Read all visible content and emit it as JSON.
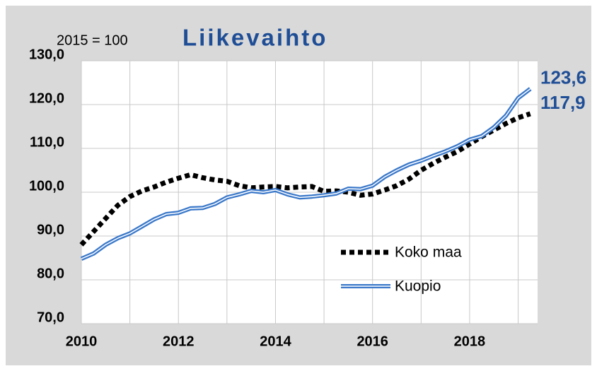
{
  "chart_data": {
    "type": "line",
    "title": "Liikevaihto",
    "subtitle": "2015 = 100",
    "x": [
      2010,
      2010.25,
      2010.5,
      2010.75,
      2011,
      2011.25,
      2011.5,
      2011.75,
      2012,
      2012.25,
      2012.5,
      2012.75,
      2013,
      2013.25,
      2013.5,
      2013.75,
      2014,
      2014.25,
      2014.5,
      2014.75,
      2015,
      2015.25,
      2015.5,
      2015.75,
      2016,
      2016.25,
      2016.5,
      2016.75,
      2017,
      2017.25,
      2017.5,
      2017.75,
      2018,
      2018.25,
      2018.5,
      2018.75,
      2019,
      2019.25
    ],
    "series": [
      {
        "name": "Koko maa",
        "color": "#000000",
        "style": "dotted",
        "end_label": "117,9",
        "values": [
          88,
          91,
          94,
          97,
          99,
          100.3,
          101.2,
          102.3,
          103.2,
          104,
          103.3,
          102.8,
          102.5,
          101.5,
          101,
          101.2,
          101.3,
          101,
          101.2,
          101.3,
          100.2,
          100.3,
          100,
          99.3,
          99.6,
          100.5,
          101.5,
          103,
          105,
          106.6,
          108,
          109.3,
          111,
          112.7,
          114.2,
          115.7,
          117,
          117.9
        ]
      },
      {
        "name": "Kuopio",
        "color": "#3a78c9",
        "style": "double",
        "end_label": "123,6",
        "values": [
          84.8,
          86,
          88,
          89.5,
          90.6,
          92.2,
          93.8,
          95,
          95.3,
          96.3,
          96.4,
          97.3,
          98.8,
          99.5,
          100.3,
          100,
          100.5,
          99.5,
          98.8,
          99,
          99.3,
          99.7,
          100.8,
          100.7,
          101.5,
          103.5,
          105,
          106.3,
          107.2,
          108.3,
          109.3,
          110.5,
          112,
          112.8,
          114.8,
          117.5,
          121.5,
          123.6
        ]
      }
    ],
    "xlim": [
      2010,
      2019.4
    ],
    "xticks": [
      2010,
      2012,
      2014,
      2016,
      2018
    ],
    "x_minor_grid": [
      2011,
      2013,
      2015,
      2017,
      2019
    ],
    "ylim": [
      70,
      130
    ],
    "yticks": [
      {
        "value": 70,
        "label": "70,0"
      },
      {
        "value": 80,
        "label": "80,0"
      },
      {
        "value": 90,
        "label": "90,0"
      },
      {
        "value": 100,
        "label": "100,0"
      },
      {
        "value": 110,
        "label": "110,0"
      },
      {
        "value": 120,
        "label": "120,0"
      },
      {
        "value": 130,
        "label": "130,0"
      }
    ],
    "grid": true,
    "legend": "lower right"
  }
}
